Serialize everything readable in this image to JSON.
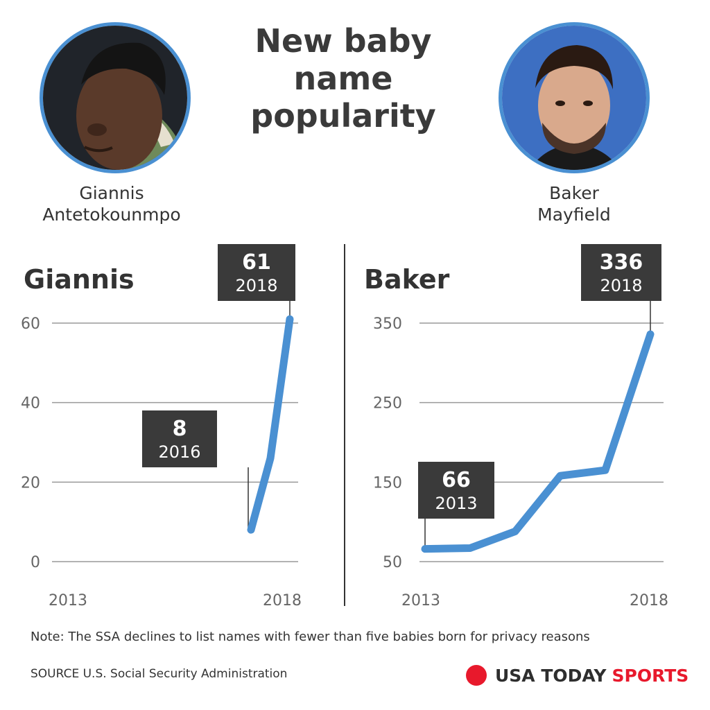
{
  "title": "New baby name popularity",
  "players": [
    {
      "name_line1": "Giannis",
      "name_line2": "Antetokounmpo"
    },
    {
      "name_line1": "Baker",
      "name_line2": "Mayfield"
    }
  ],
  "chart_data": [
    {
      "type": "line",
      "title": "Giannis",
      "x": [
        2016,
        2017,
        2018
      ],
      "series": [
        {
          "values": [
            8,
            26,
            61
          ]
        }
      ],
      "xlim": [
        2013,
        2018
      ],
      "ylim": [
        0,
        60
      ],
      "yticks": [
        0,
        20,
        40,
        60
      ],
      "xtick_labels": [
        "2013",
        "2018"
      ],
      "annotations": [
        {
          "value": "8",
          "year": "2016",
          "x": 2016,
          "y": 8
        },
        {
          "value": "61",
          "year": "2018",
          "x": 2018,
          "y": 61
        }
      ],
      "line_color": "#4a90d2",
      "grid": true
    },
    {
      "type": "line",
      "title": "Baker",
      "x": [
        2013,
        2014,
        2015,
        2016,
        2017,
        2018
      ],
      "series": [
        {
          "values": [
            66,
            67,
            88,
            158,
            165,
            336
          ]
        }
      ],
      "xlim": [
        2013,
        2018
      ],
      "ylim": [
        50,
        350
      ],
      "yticks": [
        50,
        150,
        250,
        350
      ],
      "xtick_labels": [
        "2013",
        "2018"
      ],
      "annotations": [
        {
          "value": "66",
          "year": "2013",
          "x": 2013,
          "y": 66
        },
        {
          "value": "336",
          "year": "2018",
          "x": 2018,
          "y": 336
        }
      ],
      "line_color": "#4a90d2",
      "grid": true
    }
  ],
  "note": "Note: The SSA declines to list names with fewer than five babies born for privacy reasons",
  "source": "SOURCE U.S. Social Security Administration",
  "brand": {
    "name": "USA TODAY",
    "section": "SPORTS",
    "dot_color": "#e8192c"
  }
}
